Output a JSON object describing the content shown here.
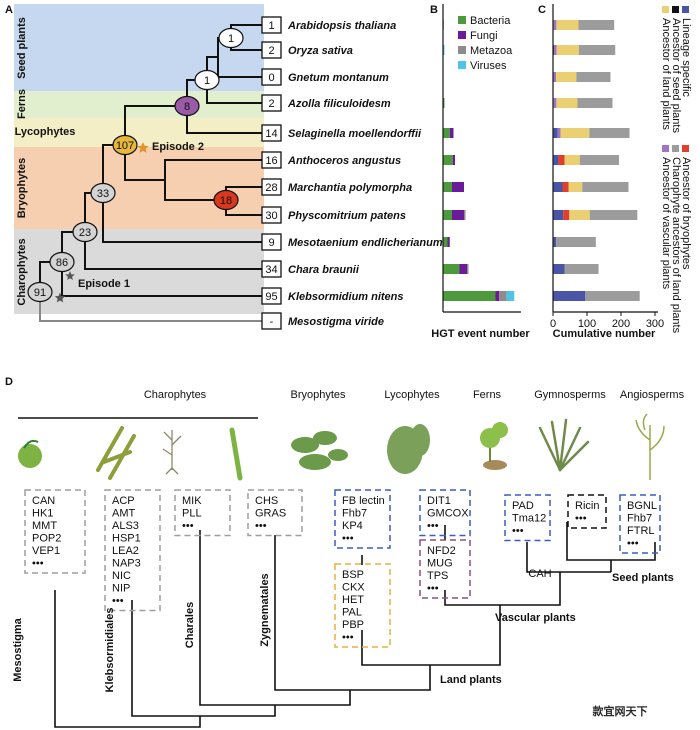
{
  "panel_a": {
    "label": "A",
    "groups": [
      "Seed plants",
      "Ferns",
      "Lycophytes",
      "Bryophytes",
      "Charophytes"
    ],
    "taxa": [
      {
        "name": "Arabidopsis thaliana",
        "count": "1"
      },
      {
        "name": "Oryza sativa",
        "count": "2"
      },
      {
        "name": "Gnetum montanum",
        "count": "0"
      },
      {
        "name": "Azolla filiculoidesm",
        "count": "2"
      },
      {
        "name": "Selaginella moellendorffii",
        "count": "14"
      },
      {
        "name": "Anthoceros angustus",
        "count": "16"
      },
      {
        "name": "Marchantia polymorpha",
        "count": "28"
      },
      {
        "name": "Physcomitrium patens",
        "count": "30"
      },
      {
        "name": "Mesotaenium endlicherianum",
        "count": "9"
      },
      {
        "name": "Chara braunii",
        "count": "34"
      },
      {
        "name": "Klebsormidium nitens",
        "count": "95"
      },
      {
        "name": "Mesostigma viride",
        "count": "-"
      }
    ],
    "nodes": [
      "1",
      "1",
      "8",
      "107",
      "18",
      "33",
      "23",
      "86",
      "91"
    ],
    "episodes": [
      "Episode 2",
      "Episode 1"
    ]
  },
  "chart_data": [
    {
      "type": "bar",
      "label": "B",
      "orientation": "horizontal",
      "stacked": true,
      "xlabel": "HGT event number",
      "xlim": [
        0,
        100
      ],
      "series": [
        {
          "name": "Bacteria",
          "color": "#4d9a3c",
          "values": [
            1,
            0,
            0,
            2,
            9,
            13,
            12,
            12,
            6,
            22,
            70
          ]
        },
        {
          "name": "Fungi",
          "color": "#6a1b9a",
          "values": [
            0,
            0,
            0,
            0,
            5,
            3,
            16,
            16,
            3,
            10,
            5
          ]
        },
        {
          "name": "Metazoa",
          "color": "#8c8c8c",
          "values": [
            0,
            0,
            0,
            0,
            0,
            0,
            0,
            2,
            0,
            2,
            10
          ]
        },
        {
          "name": "Viruses",
          "color": "#4fc3e8",
          "values": [
            0,
            2,
            0,
            0,
            0,
            0,
            0,
            0,
            0,
            0,
            10
          ]
        }
      ]
    },
    {
      "type": "bar",
      "label": "C",
      "orientation": "horizontal",
      "stacked": true,
      "xlabel": "Cumulative number",
      "xlim": [
        0,
        300
      ],
      "xticks": [
        0,
        100,
        200,
        300
      ],
      "series": [
        {
          "name": "Lineage specific",
          "color": "#4a55a8",
          "values": [
            1,
            2,
            0,
            2,
            14,
            16,
            28,
            30,
            9,
            34,
            95
          ]
        },
        {
          "name": "Ancestor of seed plants",
          "color": "#111111",
          "values": [
            1,
            1,
            1,
            0,
            0,
            0,
            0,
            0,
            0,
            0,
            0
          ]
        },
        {
          "name": "Ancestor of vascular plants",
          "color": "#a274c4",
          "values": [
            8,
            8,
            8,
            8,
            8,
            0,
            0,
            0,
            0,
            0,
            0
          ]
        },
        {
          "name": "Ancestor of bryophytes",
          "color": "#e0402a",
          "values": [
            0,
            0,
            0,
            0,
            0,
            18,
            18,
            18,
            0,
            0,
            0
          ]
        },
        {
          "name": "Ancestor of land plants",
          "color": "#ebcf73",
          "values": [
            65,
            65,
            60,
            62,
            85,
            45,
            40,
            60,
            0,
            0,
            0
          ]
        },
        {
          "name": "Charophyte ancestors of land plants",
          "color": "#9c9c9c",
          "values": [
            105,
            107,
            100,
            103,
            118,
            115,
            136,
            140,
            117,
            100,
            160
          ]
        }
      ]
    }
  ],
  "panel_d": {
    "label": "D",
    "headers": [
      "Charophytes",
      "Bryophytes",
      "Lycophytes",
      "Ferns",
      "Gymnosperms",
      "Angiosperms"
    ],
    "boxes": [
      {
        "border_color": "#9e9e9e",
        "genes": [
          {
            "name": "CAN"
          },
          {
            "name": "HK1"
          },
          {
            "name": "MMT"
          },
          {
            "name": "POP2"
          },
          {
            "name": "VEP1",
            "color": "#c62828"
          },
          {
            "name": "•••"
          }
        ]
      },
      {
        "border_color": "#9e9e9e",
        "genes": [
          {
            "name": "ACP"
          },
          {
            "name": "AMT",
            "color": "#c62828"
          },
          {
            "name": "ALS3"
          },
          {
            "name": "HSP1"
          },
          {
            "name": "LEA2"
          },
          {
            "name": "NAP3"
          },
          {
            "name": "NIC"
          },
          {
            "name": "NIP",
            "color": "#c62828"
          },
          {
            "name": "•••"
          }
        ]
      },
      {
        "border_color": "#9e9e9e",
        "genes": [
          {
            "name": "MIK",
            "color": "#c62828"
          },
          {
            "name": "PLL"
          },
          {
            "name": "•••"
          }
        ]
      },
      {
        "border_color": "#9e9e9e",
        "genes": [
          {
            "name": "CHS"
          },
          {
            "name": "GRAS",
            "color": "#c62828"
          },
          {
            "name": "•••"
          }
        ]
      },
      {
        "border_color": "#3a5fbf",
        "genes": [
          {
            "name": "FB lectin"
          },
          {
            "name": "Fhb7"
          },
          {
            "name": "KP4",
            "color": "#c62828"
          },
          {
            "name": "•••"
          }
        ]
      },
      {
        "border_color": "#e8b040",
        "genes": [
          {
            "name": "BSP"
          },
          {
            "name": "CKX"
          },
          {
            "name": "HET",
            "color": "#c62828"
          },
          {
            "name": "PAL",
            "color": "#c62828"
          },
          {
            "name": "PBP"
          },
          {
            "name": "•••"
          }
        ]
      },
      {
        "border_color": "#3a5fbf",
        "genes": [
          {
            "name": "DIT1"
          },
          {
            "name": "GMCOX"
          },
          {
            "name": "•••"
          }
        ]
      },
      {
        "border_color": "#8a5080",
        "genes": [
          {
            "name": "NFD2"
          },
          {
            "name": "MUG"
          },
          {
            "name": "TPS",
            "color": "#c62828"
          },
          {
            "name": "•••"
          }
        ]
      },
      {
        "border_color": "#3a5fbf",
        "genes": [
          {
            "name": "PAD"
          },
          {
            "name": "Tma12",
            "color": "#c62828"
          },
          {
            "name": "•••"
          }
        ]
      },
      {
        "border_color": "#111111",
        "genes": [
          {
            "name": "Ricin"
          },
          {
            "name": "•••"
          }
        ]
      },
      {
        "border_color": "#3a5fbf",
        "genes": [
          {
            "name": "BGNL",
            "color": "#c62828"
          },
          {
            "name": "Fhb7",
            "color": "#c62828"
          },
          {
            "name": "FTRL",
            "color": "#c62828"
          },
          {
            "name": "•••"
          }
        ]
      }
    ],
    "clades": [
      "Mesostigma",
      "Klebsormidiales",
      "Charales",
      "Zygnematales",
      "Land plants",
      "Vascular plants",
      "Seed plants",
      "CAH"
    ]
  },
  "watermark": "款宜网天下"
}
